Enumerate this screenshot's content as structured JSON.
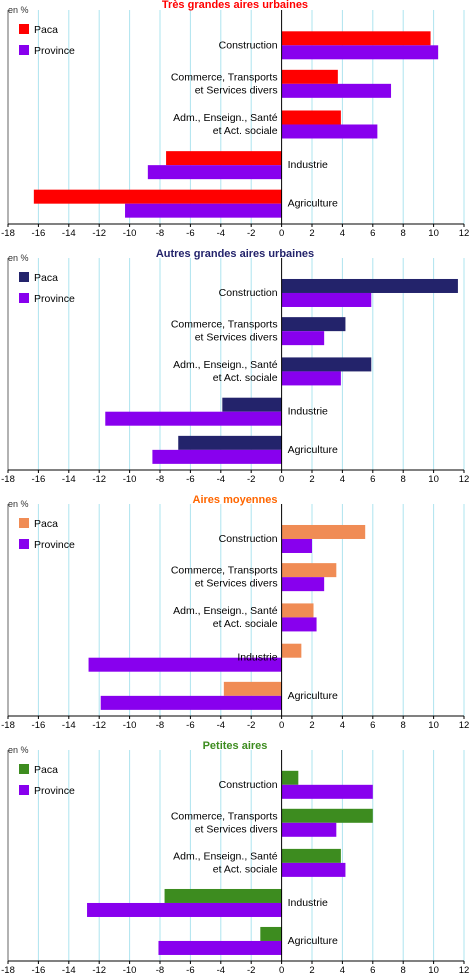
{
  "unit_label": "en %",
  "colors": {
    "province": "#8800ee",
    "grid": "#aee4ef",
    "axis": "#000000"
  },
  "chart_data": [
    {
      "type": "bar",
      "orientation": "horizontal",
      "title": "Très grandes aires urbaines",
      "title_color": "#ff0000",
      "unit": "en %",
      "categories": [
        "Construction",
        "Commerce, Transports\net Services divers",
        "Adm., Enseign., Santé\net Act. sociale",
        "Industrie",
        "Agriculture"
      ],
      "series": [
        {
          "name": "Paca",
          "color": "#ff0000",
          "values": [
            9.8,
            3.7,
            3.9,
            -7.6,
            -16.3
          ]
        },
        {
          "name": "Province",
          "color": "#8800ee",
          "values": [
            10.3,
            7.2,
            6.3,
            -8.8,
            -10.3
          ]
        }
      ],
      "xlim": [
        -18,
        12
      ],
      "xticks": [
        -18,
        -16,
        -14,
        -12,
        -10,
        -8,
        -6,
        -4,
        -2,
        0,
        2,
        4,
        6,
        8,
        10,
        12
      ],
      "grid": true,
      "legend": "top-left"
    },
    {
      "type": "bar",
      "orientation": "horizontal",
      "title": "Autres grandes aires urbaines",
      "title_color": "#23236b",
      "unit": "en %",
      "categories": [
        "Construction",
        "Commerce, Transports\net Services divers",
        "Adm., Enseign., Santé\net Act. sociale",
        "Industrie",
        "Agriculture"
      ],
      "series": [
        {
          "name": "Paca",
          "color": "#23236b",
          "values": [
            11.6,
            4.2,
            5.9,
            -3.9,
            -6.8
          ]
        },
        {
          "name": "Province",
          "color": "#8800ee",
          "values": [
            5.9,
            2.8,
            3.9,
            -11.6,
            -8.5
          ]
        }
      ],
      "xlim": [
        -18,
        12
      ],
      "xticks": [
        -18,
        -16,
        -14,
        -12,
        -10,
        -8,
        -6,
        -4,
        -2,
        0,
        2,
        4,
        6,
        8,
        10,
        12
      ],
      "grid": true,
      "legend": "top-left"
    },
    {
      "type": "bar",
      "orientation": "horizontal",
      "title": "Aires moyennes",
      "title_color": "#ff6600",
      "unit": "en %",
      "categories": [
        "Construction",
        "Commerce, Transports\net Services divers",
        "Adm., Enseign., Santé\net Act. sociale",
        "Industrie",
        "Agriculture"
      ],
      "series": [
        {
          "name": "Paca",
          "color": "#f08c55",
          "values": [
            5.5,
            3.6,
            2.1,
            1.3,
            -3.8
          ]
        },
        {
          "name": "Province",
          "color": "#8800ee",
          "values": [
            2.0,
            2.8,
            2.3,
            -12.7,
            -11.9
          ]
        }
      ],
      "xlim": [
        -18,
        12
      ],
      "xticks": [
        -18,
        -16,
        -14,
        -12,
        -10,
        -8,
        -6,
        -4,
        -2,
        0,
        2,
        4,
        6,
        8,
        10,
        12
      ],
      "grid": true,
      "legend": "top-left"
    },
    {
      "type": "bar",
      "orientation": "horizontal",
      "title": "Petites aires",
      "title_color": "#3d8c1f",
      "unit": "en %",
      "categories": [
        "Construction",
        "Commerce, Transports\net Services divers",
        "Adm., Enseign., Santé\net Act. sociale",
        "Industrie",
        "Agriculture"
      ],
      "series": [
        {
          "name": "Paca",
          "color": "#3d8c1f",
          "values": [
            1.1,
            6.0,
            3.9,
            -7.7,
            -1.4
          ]
        },
        {
          "name": "Province",
          "color": "#8800ee",
          "values": [
            6.0,
            3.6,
            4.2,
            -12.8,
            -8.1
          ]
        }
      ],
      "xlim": [
        -18,
        12
      ],
      "xticks": [
        -18,
        -16,
        -14,
        -12,
        -10,
        -8,
        -6,
        -4,
        -2,
        0,
        2,
        4,
        6,
        8,
        10,
        12
      ],
      "grid": true,
      "legend": "top-left"
    }
  ]
}
